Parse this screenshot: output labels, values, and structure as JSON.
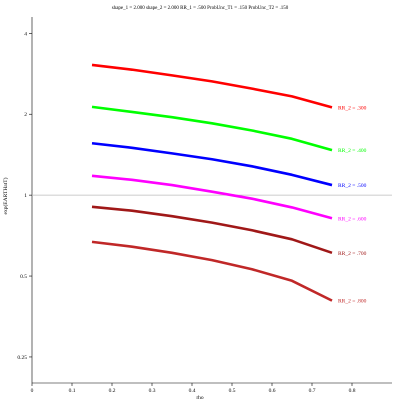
{
  "chart_data": {
    "type": "line",
    "title": "shape_1 = 2.000  shape_2 = 2.000  RR_1 = .500  ProbUnc_T1 = .150  ProbUnc_T2 = .150",
    "xlabel": "rho",
    "ylabel": "exp(EARTHatT)",
    "xlim": [
      0,
      0.9
    ],
    "ylim": [
      0.2,
      4.6
    ],
    "yscale": "log",
    "x_ticks": [
      0,
      0.1,
      0.2,
      0.3,
      0.4,
      0.5,
      0.6,
      0.7,
      0.8
    ],
    "x_tick_labels": [
      "0",
      "0.1",
      "0.2",
      "0.3",
      "0.4",
      "0.5",
      "0.6",
      "0.7",
      "0.8"
    ],
    "y_ticks": [
      0.25,
      0.5,
      1,
      2,
      4
    ],
    "y_tick_labels": [
      "0.25",
      "0.5",
      "1",
      "2",
      "4"
    ],
    "reference_line_y": 1,
    "x": [
      0.15,
      0.25,
      0.35,
      0.45,
      0.55,
      0.65,
      0.75
    ],
    "series": [
      {
        "name": "RR_2 = .300",
        "color": "#ff0000",
        "values": [
          3.05,
          2.93,
          2.79,
          2.65,
          2.49,
          2.33,
          2.12
        ]
      },
      {
        "name": "RR_2 = .400",
        "color": "#00ff00",
        "values": [
          2.13,
          2.04,
          1.95,
          1.85,
          1.74,
          1.62,
          1.47
        ]
      },
      {
        "name": "RR_2 = .500",
        "color": "#0000ff",
        "values": [
          1.56,
          1.5,
          1.43,
          1.36,
          1.28,
          1.19,
          1.09
        ]
      },
      {
        "name": "RR_2 = .600",
        "color": "#ff00ff",
        "values": [
          1.18,
          1.14,
          1.09,
          1.03,
          0.97,
          0.9,
          0.82
        ]
      },
      {
        "name": "RR_2 = .700",
        "color": "#a01818",
        "values": [
          0.905,
          0.875,
          0.835,
          0.79,
          0.74,
          0.685,
          0.61
        ]
      },
      {
        "name": "RR_2 = .800",
        "color": "#c02828",
        "values": [
          0.67,
          0.643,
          0.61,
          0.573,
          0.53,
          0.48,
          0.405
        ]
      }
    ],
    "grid": false,
    "legend": "none; each series is labeled at the right end of its line"
  }
}
